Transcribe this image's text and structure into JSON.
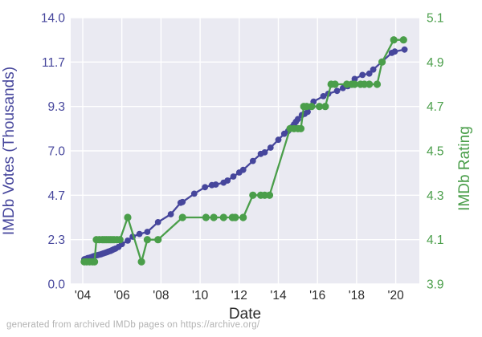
{
  "figure": {
    "caption": "generated from archived IMDb pages on https://archive.org/"
  },
  "chart_data": {
    "type": "line",
    "title": "",
    "xlabel": "Date",
    "ylabel_left": "IMDb Votes (Thousands)",
    "ylabel_right": "IMDb Rating",
    "plot_background": "#eaeaf2",
    "grid_color": "#ffffff",
    "grid": true,
    "x_ticks": [
      {
        "label": "'04",
        "year": 2004
      },
      {
        "label": "'06",
        "year": 2006
      },
      {
        "label": "'08",
        "year": 2008
      },
      {
        "label": "'10",
        "year": 2010
      },
      {
        "label": "'12",
        "year": 2012
      },
      {
        "label": "'14",
        "year": 2014
      },
      {
        "label": "'16",
        "year": 2016
      },
      {
        "label": "'18",
        "year": 2018
      },
      {
        "label": "'20",
        "year": 2020
      }
    ],
    "left_axis": {
      "label": "IMDb Votes (Thousands)",
      "color": "#46469c",
      "range": [
        0,
        14
      ],
      "tick_labels": [
        "0.0",
        "2.3",
        "4.7",
        "7.0",
        "9.3",
        "11.7",
        "14.0"
      ]
    },
    "right_axis": {
      "label": "IMDb Rating",
      "color": "#4a9e4a",
      "range": [
        3.9,
        5.1
      ],
      "tick_labels": [
        "3.9",
        "4.1",
        "4.3",
        "4.5",
        "4.7",
        "4.9",
        "5.1"
      ]
    },
    "x_range": [
      2003.4,
      2021.2
    ],
    "legend": "none",
    "series": [
      {
        "name": "IMDb Votes (Thousands)",
        "axis": "left",
        "color": "#46469c",
        "x": [
          2004.08,
          2004.17,
          2004.25,
          2004.33,
          2004.42,
          2004.5,
          2004.58,
          2004.67,
          2004.75,
          2004.83,
          2004.92,
          2005.0,
          2005.08,
          2005.17,
          2005.25,
          2005.33,
          2005.42,
          2005.5,
          2005.58,
          2005.67,
          2005.83,
          2006.0,
          2006.3,
          2006.55,
          2006.9,
          2007.3,
          2007.85,
          2008.5,
          2009.0,
          2009.1,
          2009.7,
          2010.25,
          2010.6,
          2010.8,
          2011.2,
          2011.4,
          2011.7,
          2012.0,
          2012.2,
          2012.7,
          2013.1,
          2013.3,
          2013.6,
          2014.0,
          2014.3,
          2014.5,
          2014.7,
          2014.8,
          2014.9,
          2015.0,
          2015.2,
          2015.35,
          2015.5,
          2015.8,
          2016.3,
          2016.55,
          2017.0,
          2017.3,
          2017.55,
          2017.9,
          2018.3,
          2018.65,
          2018.85,
          2019.3,
          2019.8,
          2019.95,
          2020.45
        ],
        "y": [
          1.3,
          1.33,
          1.36,
          1.38,
          1.41,
          1.44,
          1.47,
          1.5,
          1.52,
          1.54,
          1.56,
          1.59,
          1.62,
          1.65,
          1.68,
          1.71,
          1.74,
          1.78,
          1.82,
          1.86,
          1.95,
          2.1,
          2.28,
          2.49,
          2.63,
          2.74,
          3.25,
          3.67,
          4.27,
          4.31,
          4.75,
          5.09,
          5.2,
          5.23,
          5.33,
          5.44,
          5.65,
          5.86,
          6.0,
          6.47,
          6.84,
          6.92,
          7.17,
          7.58,
          7.9,
          8.04,
          8.25,
          8.39,
          8.53,
          8.67,
          8.88,
          8.95,
          9.05,
          9.59,
          9.87,
          10.0,
          10.15,
          10.3,
          10.4,
          10.78,
          10.99,
          11.06,
          11.27,
          11.69,
          12.15,
          12.22,
          12.32
        ]
      },
      {
        "name": "IMDb Rating",
        "axis": "right",
        "color": "#4a9e4a",
        "x": [
          2004.08,
          2004.2,
          2004.35,
          2004.5,
          2004.6,
          2004.7,
          2004.85,
          2005.0,
          2005.1,
          2005.2,
          2005.3,
          2005.4,
          2005.5,
          2005.6,
          2005.75,
          2005.9,
          2006.3,
          2007.0,
          2007.3,
          2007.85,
          2009.1,
          2010.3,
          2010.7,
          2011.2,
          2011.65,
          2011.8,
          2012.2,
          2012.7,
          2013.1,
          2013.3,
          2013.55,
          2014.6,
          2014.8,
          2015.0,
          2015.15,
          2015.3,
          2015.45,
          2015.7,
          2016.1,
          2016.4,
          2016.7,
          2016.9,
          2017.5,
          2017.75,
          2017.9,
          2018.2,
          2018.4,
          2018.65,
          2019.05,
          2019.3,
          2019.9,
          2020.4
        ],
        "y": [
          4.0,
          4.0,
          4.0,
          4.0,
          4.0,
          4.1,
          4.1,
          4.1,
          4.1,
          4.1,
          4.1,
          4.1,
          4.1,
          4.1,
          4.1,
          4.1,
          4.2,
          4.0,
          4.1,
          4.1,
          4.2,
          4.2,
          4.2,
          4.2,
          4.2,
          4.2,
          4.2,
          4.3,
          4.3,
          4.3,
          4.3,
          4.6,
          4.6,
          4.6,
          4.6,
          4.7,
          4.7,
          4.7,
          4.7,
          4.7,
          4.8,
          4.8,
          4.8,
          4.8,
          4.8,
          4.8,
          4.8,
          4.8,
          4.8,
          4.9,
          5.0,
          5.0
        ]
      }
    ]
  }
}
